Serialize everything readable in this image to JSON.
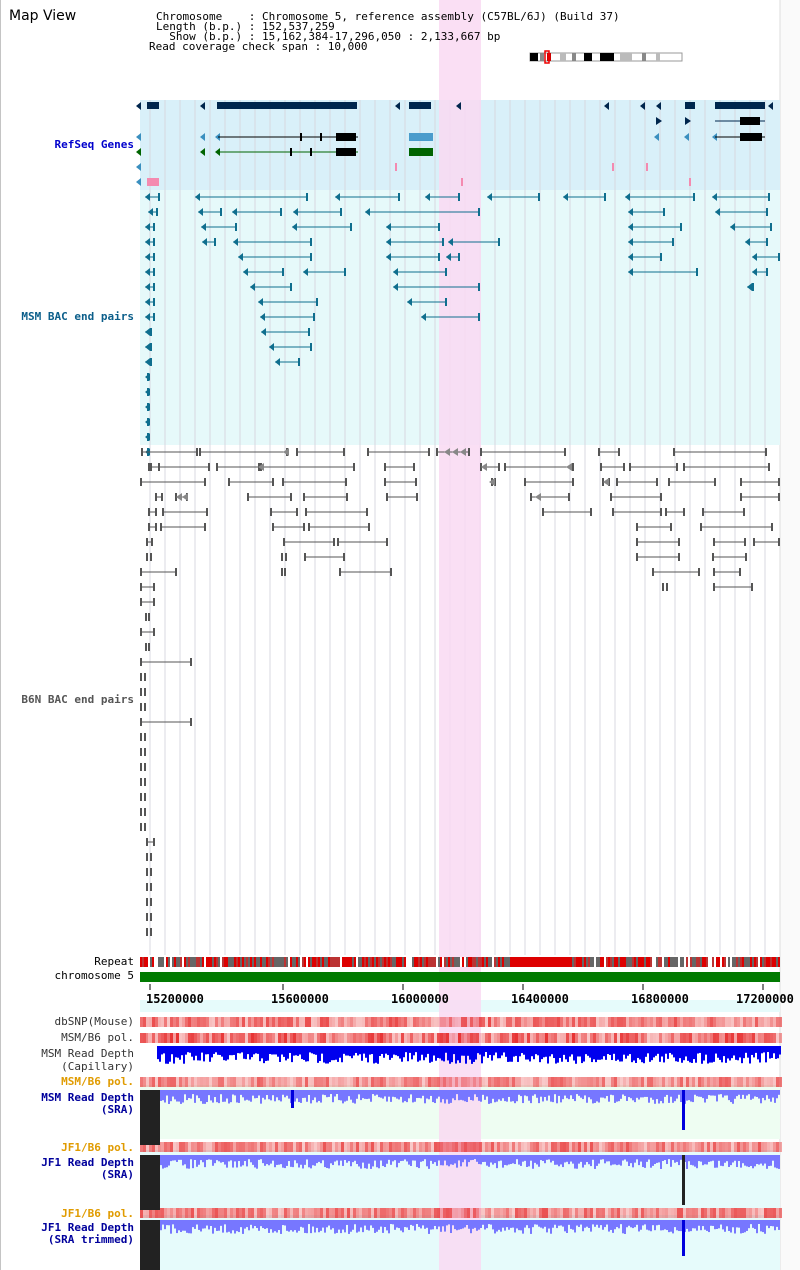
{
  "title": "Map View",
  "info": {
    "chromosome_line": "Chromosome    : Chromosome 5, reference assembly (C57BL/6J) (Build 37)",
    "length_line": "Length (b.p.) : 152,537,259",
    "show_line": "  Show (b.p.) : 15,162,384-17,296,050 : 2,133,667 bp",
    "coverage_line": "Read coverage check span : 10,000"
  },
  "tracks": {
    "refseq": "RefSeq Genes",
    "msm_bac": "MSM BAC end pairs",
    "b6n_bac": "B6N BAC end pairs",
    "repeat": "Repeat",
    "chromosome": "chromosome 5",
    "dbsnp": "dbSNP(Mouse)",
    "msm_pol_1": "MSM/B6 pol.",
    "msm_depth_cap_1": "MSM Read Depth",
    "msm_depth_cap_2": "(Capillary)",
    "msm_pol_2": "MSM/B6 pol.",
    "msm_depth_sra_1": "MSM Read Depth",
    "msm_depth_sra_2": "(SRA)",
    "jf1_pol_1": "JF1/B6 pol.",
    "jf1_depth_sra_1": "JF1 Read Depth",
    "jf1_depth_sra_2": "(SRA)",
    "jf1_pol_2": "JF1/B6 pol.",
    "jf1_depth_trim_1": "JF1 Read Depth",
    "jf1_depth_trim_2": "(SRA trimmed)"
  },
  "axis_ticks": [
    "15200000",
    "15600000",
    "16000000",
    "16400000",
    "16800000",
    "17200000"
  ],
  "colors": {
    "highlight": "#f9d9f2",
    "refseq_bg": "#d9f0f9",
    "msm_bg": "#e6f9fa",
    "refseq_label": "#0000cc",
    "msm_label": "#0b5e8a",
    "b6n_label": "#555555",
    "orange_label": "#e09b00",
    "blue_label": "#00009c",
    "chrom_bar": "#007a00",
    "depth_blue": "#0000ee",
    "depth_light": "#7777ff"
  }
}
